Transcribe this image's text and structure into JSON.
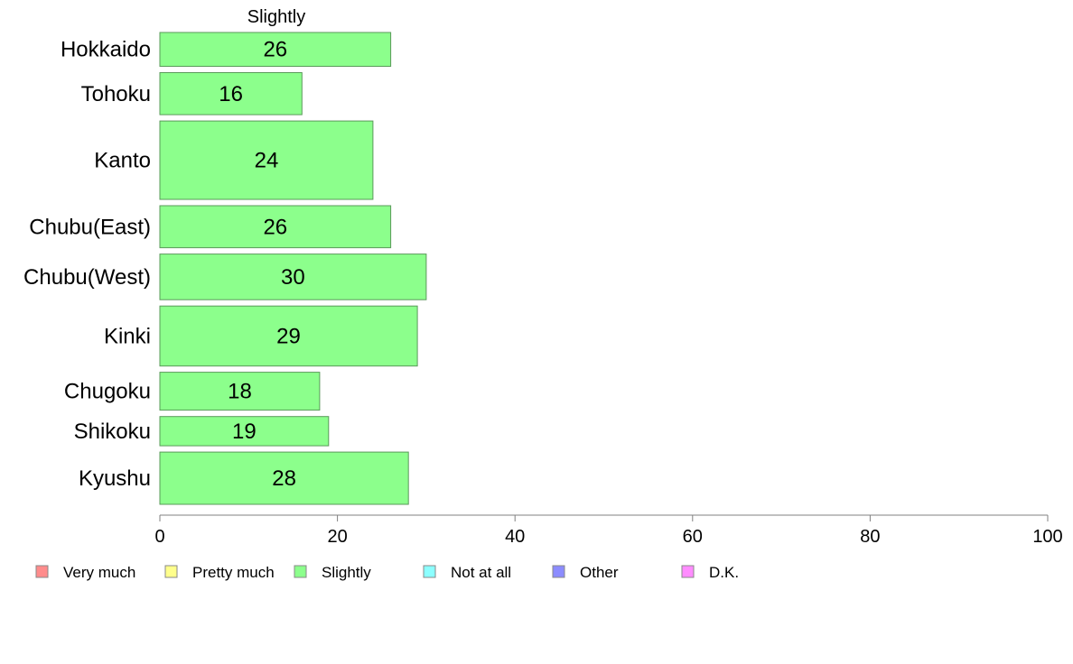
{
  "chart_data": {
    "type": "bar",
    "orientation": "horizontal",
    "title": "Slightly",
    "categories": [
      "Hokkaido",
      "Tohoku",
      "Kanto",
      "Chubu(East)",
      "Chubu(West)",
      "Kinki",
      "Chugoku",
      "Shikoku",
      "Kyushu"
    ],
    "series": [
      {
        "name": "Slightly",
        "values": [
          26,
          16,
          24,
          26,
          30,
          29,
          18,
          19,
          28
        ]
      }
    ],
    "value_labels": [
      "26",
      "16",
      "24",
      "26",
      "30",
      "29",
      "18",
      "19",
      "28"
    ],
    "relative_bar_heights": [
      0.66,
      0.82,
      1.53,
      0.82,
      0.89,
      1.17,
      0.74,
      0.57,
      1.02
    ],
    "xlim": [
      0,
      100
    ],
    "xticks": [
      0,
      20,
      40,
      60,
      80,
      100
    ],
    "grid": false,
    "legend_position": "bottom",
    "legend": [
      {
        "label": "Very much",
        "color": "#ff8c8c"
      },
      {
        "label": "Pretty much",
        "color": "#ffff8c"
      },
      {
        "label": "Slightly",
        "color": "#8cff8c"
      },
      {
        "label": "Not at all",
        "color": "#8cffff"
      },
      {
        "label": "Other",
        "color": "#8c8cff"
      },
      {
        "label": "D.K.",
        "color": "#ff8cff"
      }
    ],
    "bar_color": "#8cff8c",
    "bar_edge_color": "#5a9a5a"
  }
}
